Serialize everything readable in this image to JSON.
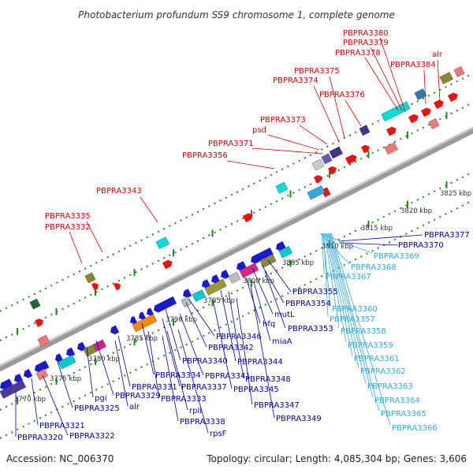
{
  "title": "Photobacterium profundum SS9 chromosome 1, complete genome",
  "accession": "Accession: NC_006370",
  "summary": "Topology: circular; Length: 4,085,304 bp; Genes: 3,606",
  "colors": {
    "red_labels": "#dd0000",
    "blue_labels": "#0000aa",
    "cyan_labels": "#33aadd",
    "backbone": "#999999",
    "ticks": "#228822"
  },
  "scale_labels": [
    "3770 kbp",
    "3775 kbp",
    "3780 kbp",
    "3785 kbp",
    "3790 kbp",
    "3795 kbp",
    "3800 kbp",
    "3805 kbp",
    "3810 kbp",
    "3815 kbp",
    "3820 kbp",
    "3825 kbp"
  ],
  "red_labels": [
    "PBPRA3380",
    "PBPRA3379",
    "PBPRA3378",
    "alr",
    "PBPRA3384",
    "PBPRA3375",
    "PBPRA3374",
    "PBPRA3376",
    "PBPRA3373",
    "psd",
    "PBPRA3371",
    "PBPRA3356",
    "PBPRA3343",
    "PBPRA3335",
    "PBPRA3332"
  ],
  "blue_labels": [
    "PBPRA3377",
    "PBPRA3370",
    "PBPRA3355",
    "PBPRA3354",
    "mutL",
    "PBPRA3353",
    "hfq",
    "miaA",
    "PBPRA3346",
    "PBPRA3342",
    "PBPRA3344",
    "PBPRA3340",
    "PBPRA3341",
    "PBPRA3348",
    "PBPRA3334",
    "PBPRA3331",
    "PBPRA3337",
    "PBPRA3345",
    "PBPRA3329",
    "PBPRA3333",
    "PBPRA3347",
    "pgi",
    "alr",
    "PBPRA3325",
    "PBPRA3349",
    "rplI",
    "PBPRA3338",
    "rpsF",
    "PBPRA3321",
    "PBPRA3322",
    "PBPRA3320"
  ],
  "cyan_labels": [
    "PBPRA3369",
    "PBPRA3368",
    "PBPRA3367",
    "PBPRA3360",
    "PBPRA3357",
    "PBPRA3358",
    "PBPRA3359",
    "PBPRA3361",
    "PBPRA3362",
    "PBPRA3363",
    "PBPRA3364",
    "PBPRA3365",
    "PBPRA3366"
  ]
}
